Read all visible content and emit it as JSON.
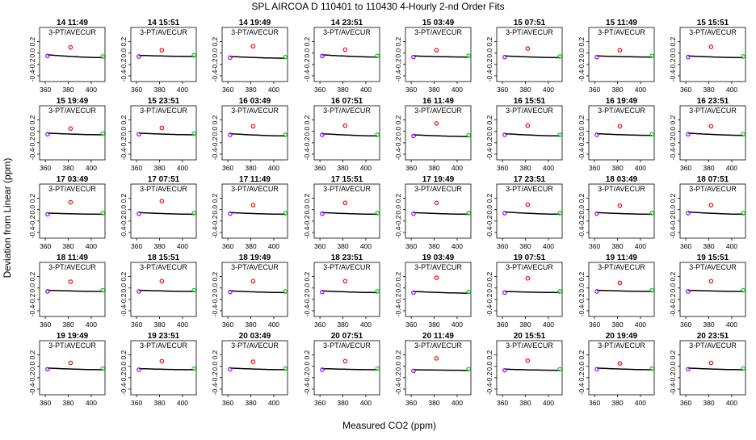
{
  "header": {
    "title": "SPL   AIRCOA D   110401 to 110430   4-Hourly 2-nd Order Fits",
    "xlabel": "Measured CO2 (ppm)",
    "ylabel": "Deviation from Linear (ppm)"
  },
  "chart_data": {
    "type": "scatter",
    "title": "SPL   AIRCOA D   110401 to 110430   4-Hourly 2-nd Order Fits",
    "xlabel": "Measured CO2 (ppm)",
    "ylabel": "Deviation from Linear (ppm)",
    "panel_legend": "3-PT/AVECUR",
    "xlim": [
      355,
      412
    ],
    "ylim": [
      -0.5,
      0.45
    ],
    "xticks": [
      "360",
      "380",
      "400"
    ],
    "yticks": [
      "0.2",
      "0.0",
      "-0.2",
      "-0.4"
    ],
    "ytick_values": [
      0.2,
      0.0,
      -0.2,
      -0.4
    ],
    "xtick_values": [
      360,
      380,
      400
    ],
    "colors": {
      "low": "#9900ff",
      "mid": "#ff0000",
      "high": "#00cc00",
      "curve": "#000000"
    },
    "standard_x": [
      362,
      382,
      410
    ],
    "panels": [
      {
        "label": "14 11:49",
        "points": [
          -0.05,
          0.1,
          -0.06
        ]
      },
      {
        "label": "14 15:51",
        "points": [
          -0.06,
          0.05,
          -0.04
        ]
      },
      {
        "label": "14 19:49",
        "points": [
          -0.08,
          0.12,
          -0.07
        ]
      },
      {
        "label": "14 23:51",
        "points": [
          -0.05,
          0.06,
          -0.05
        ]
      },
      {
        "label": "15 03:49",
        "points": [
          -0.07,
          0.05,
          -0.05
        ]
      },
      {
        "label": "15 07:51",
        "points": [
          -0.07,
          0.08,
          -0.06
        ]
      },
      {
        "label": "15 11:49",
        "points": [
          -0.07,
          0.05,
          -0.05
        ]
      },
      {
        "label": "15 15:51",
        "points": [
          -0.07,
          0.11,
          -0.06
        ]
      },
      {
        "label": "15 19:49",
        "points": [
          -0.05,
          0.05,
          -0.04
        ]
      },
      {
        "label": "15 23:51",
        "points": [
          -0.05,
          0.06,
          -0.04
        ]
      },
      {
        "label": "16 03:49",
        "points": [
          -0.06,
          0.09,
          -0.06
        ]
      },
      {
        "label": "16 07:51",
        "points": [
          -0.06,
          0.1,
          -0.06
        ]
      },
      {
        "label": "16 11:49",
        "points": [
          -0.08,
          0.14,
          -0.07
        ]
      },
      {
        "label": "16 15:51",
        "points": [
          -0.06,
          0.1,
          -0.06
        ]
      },
      {
        "label": "16 19:49",
        "points": [
          -0.06,
          0.09,
          -0.05
        ]
      },
      {
        "label": "16 23:51",
        "points": [
          -0.05,
          0.09,
          -0.05
        ]
      },
      {
        "label": "17 03:49",
        "points": [
          -0.08,
          0.13,
          -0.06
        ]
      },
      {
        "label": "17 07:51",
        "points": [
          -0.07,
          0.15,
          -0.06
        ]
      },
      {
        "label": "17 11:49",
        "points": [
          -0.07,
          0.08,
          -0.06
        ]
      },
      {
        "label": "17 15:51",
        "points": [
          -0.07,
          0.12,
          -0.06
        ]
      },
      {
        "label": "17 19:49",
        "points": [
          -0.07,
          0.12,
          -0.06
        ]
      },
      {
        "label": "17 23:51",
        "points": [
          -0.06,
          0.09,
          -0.06
        ]
      },
      {
        "label": "18 03:49",
        "points": [
          -0.07,
          0.07,
          -0.06
        ]
      },
      {
        "label": "18 07:51",
        "points": [
          -0.06,
          0.08,
          -0.06
        ]
      },
      {
        "label": "18 11:49",
        "points": [
          -0.06,
          0.11,
          -0.04
        ]
      },
      {
        "label": "18 15:51",
        "points": [
          -0.06,
          0.12,
          -0.04
        ]
      },
      {
        "label": "18 19:49",
        "points": [
          -0.07,
          0.12,
          -0.06
        ]
      },
      {
        "label": "18 23:51",
        "points": [
          -0.07,
          0.12,
          -0.06
        ]
      },
      {
        "label": "19 03:49",
        "points": [
          -0.08,
          0.18,
          -0.07
        ]
      },
      {
        "label": "19 07:51",
        "points": [
          -0.08,
          0.17,
          -0.06
        ]
      },
      {
        "label": "19 11:49",
        "points": [
          -0.06,
          0.09,
          -0.04
        ]
      },
      {
        "label": "19 15:51",
        "points": [
          -0.06,
          0.12,
          -0.04
        ]
      },
      {
        "label": "19 19:49",
        "points": [
          -0.05,
          0.06,
          -0.04
        ]
      },
      {
        "label": "19 23:51",
        "points": [
          -0.06,
          0.09,
          -0.04
        ]
      },
      {
        "label": "20 03:49",
        "points": [
          -0.05,
          0.08,
          -0.04
        ]
      },
      {
        "label": "20 07:51",
        "points": [
          -0.06,
          0.09,
          -0.04
        ]
      },
      {
        "label": "20 11:49",
        "points": [
          -0.08,
          0.14,
          -0.05
        ]
      },
      {
        "label": "20 15:51",
        "points": [
          -0.07,
          0.1,
          -0.05
        ]
      },
      {
        "label": "20 19:49",
        "points": [
          -0.05,
          0.05,
          -0.04
        ]
      },
      {
        "label": "20 23:51",
        "points": [
          -0.05,
          0.06,
          -0.04
        ]
      }
    ]
  }
}
